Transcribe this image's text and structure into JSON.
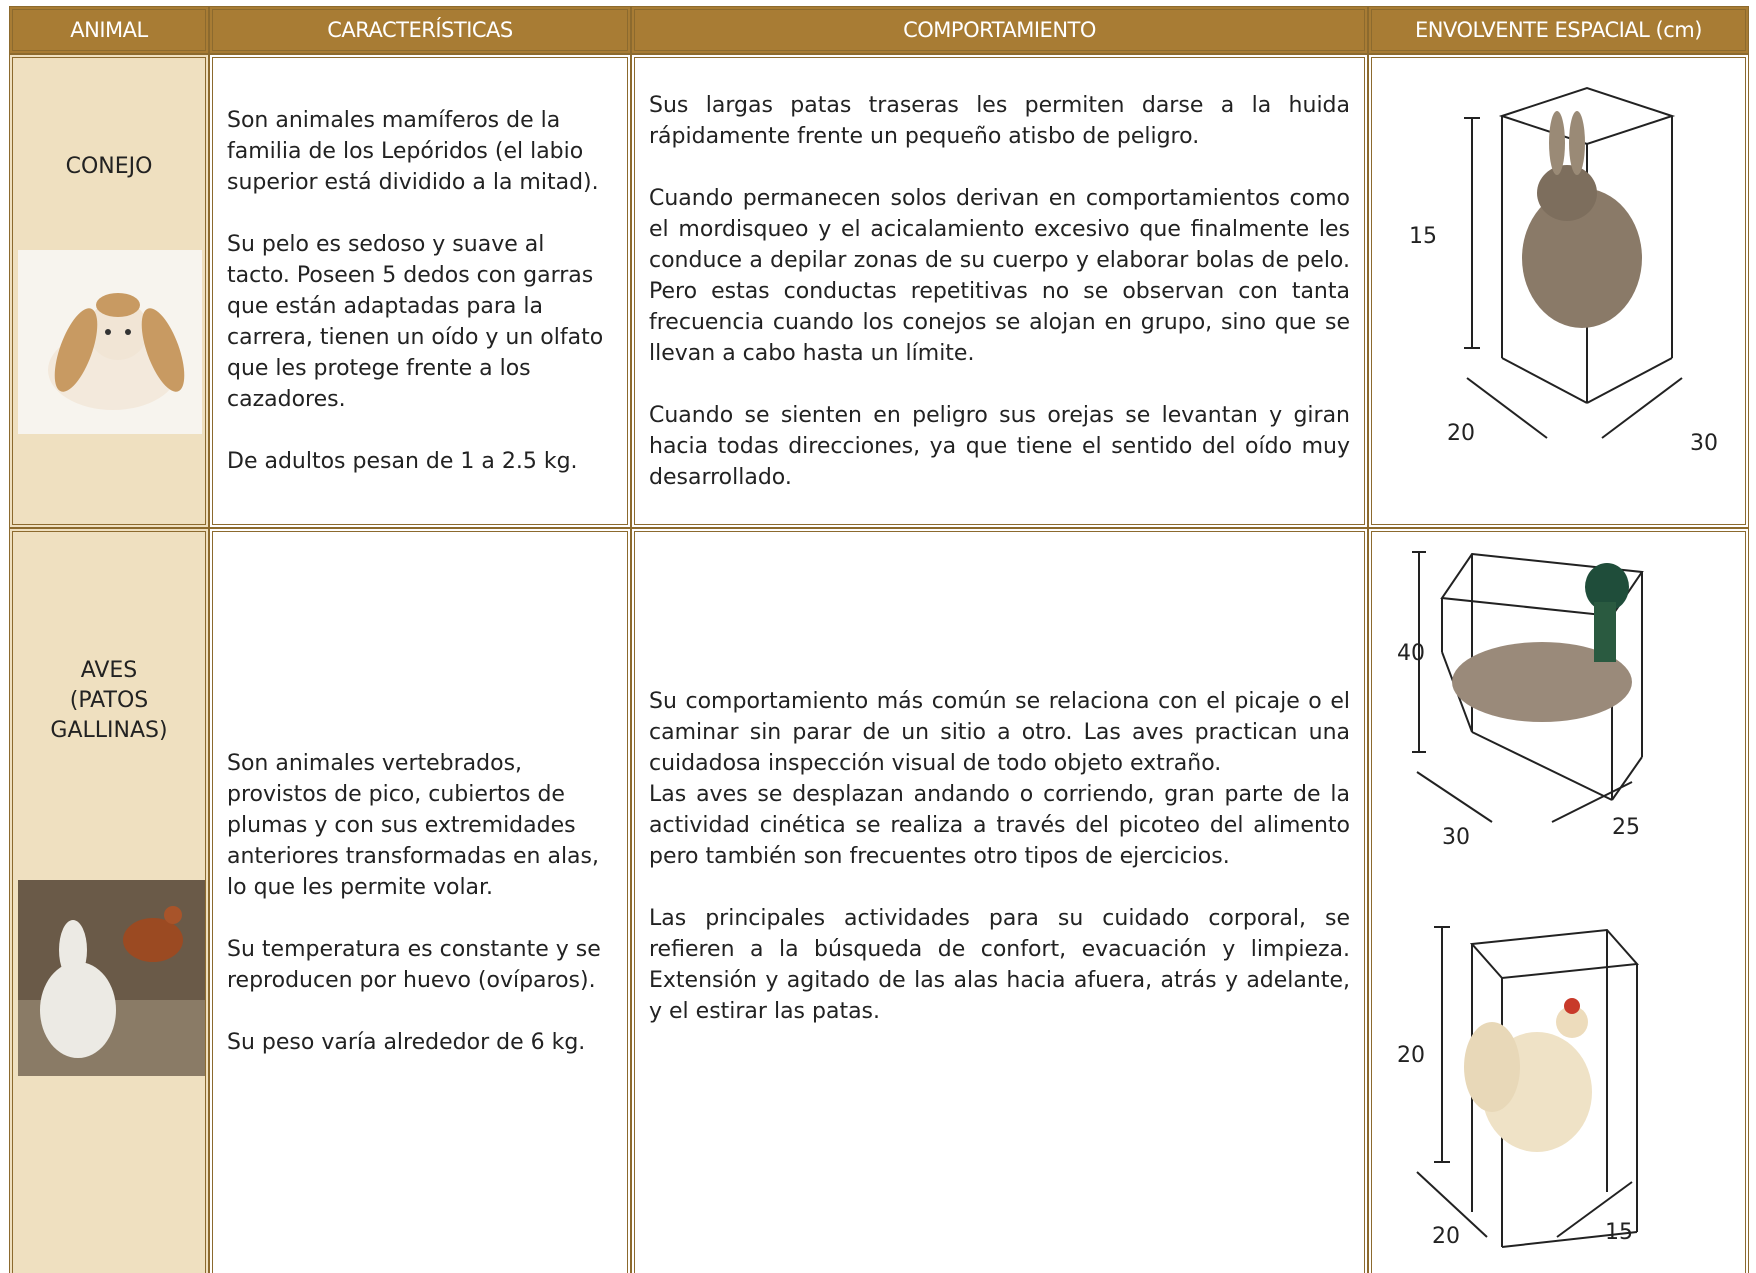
{
  "table": {
    "headers": [
      "ANIMAL",
      "CARACTERÍSTICAS",
      "COMPORTAMIENTO",
      "ENVOLVENTE ESPACIAL (cm)"
    ],
    "rows": [
      {
        "animal": [
          "CONEJO"
        ],
        "characteristics": [
          "Son animales mamíferos de la familia de los Lepóridos (el labio superior está dividido a la mitad).",
          "Su pelo es sedoso y suave al tacto. Poseen 5 dedos con garras que están adaptadas para la carrera, tienen un oído y un olfato que les protege frente a los cazadores.",
          "De adultos pesan de 1 a 2.5 kg."
        ],
        "behavior": [
          [
            "Sus largas patas traseras les permiten darse a la huida rápidamente frente un pequeño atisbo de peligro."
          ],
          [
            "Cuando permanecen solos derivan en comportamientos como el mordisqueo y el acicalamiento excesivo que finalmente les conduce a depilar zonas de su cuerpo y elaborar bolas de pelo. Pero estas conductas repetitivas no se observan con tanta frecuencia cuando los conejos se alojan en grupo, sino que se llevan a cabo hasta un límite."
          ],
          [
            "Cuando se sienten en peligro sus orejas se levantan y giran hacia todas direcciones, ya que tiene el sentido del oído muy desarrollado."
          ]
        ],
        "envelopes": [
          {
            "height": 15,
            "depth": 20,
            "width": 30
          }
        ]
      },
      {
        "animal": [
          "AVES",
          "(PATOS",
          "GALLINAS)"
        ],
        "characteristics": [
          "Son animales vertebrados, provistos de pico, cubiertos de plumas y con sus extremidades anteriores transformadas en alas, lo que les permite volar.",
          "Su temperatura es constante y se reproducen por huevo (ovíparos).",
          "Su peso varía alrededor de 6 kg."
        ],
        "behavior": [
          [
            "Su comportamiento más común se relaciona con el picaje o el caminar sin parar de un sitio a otro. Las aves practican una cuidadosa inspección visual de todo objeto extraño.",
            "Las aves se desplazan andando o corriendo, gran parte de la actividad cinética se realiza a través del picoteo del alimento pero también son frecuentes otro tipos de ejercicios."
          ],
          [
            "Las principales actividades para su cuidado corporal, se refieren a la búsqueda de confort, evacuación y limpieza. Extensión y agitado de las alas hacia afuera, atrás y adelante, y el estirar las patas."
          ]
        ],
        "envelopes": [
          {
            "height": 40,
            "depth": 30,
            "width": 25
          },
          {
            "height": 20,
            "depth": 20,
            "width": 15
          }
        ]
      }
    ]
  }
}
